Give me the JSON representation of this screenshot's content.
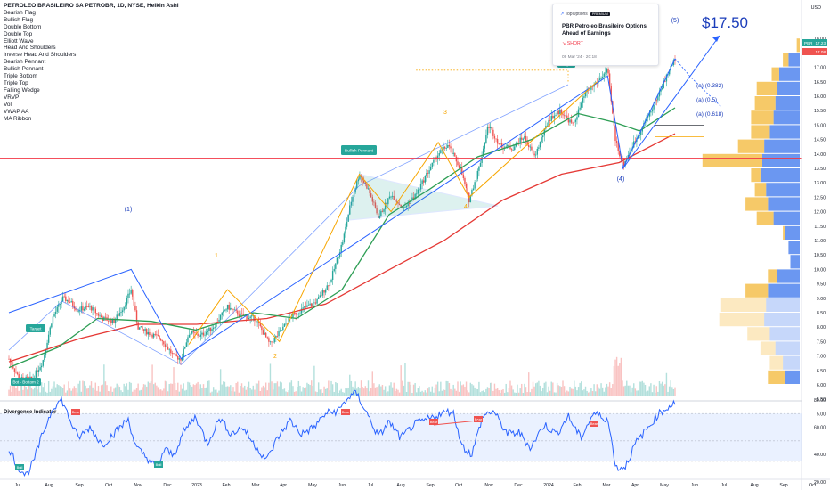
{
  "header": {
    "symbol_line": "PETROLEO BRASILEIRO SA PETROBR, 1D, NYSE, Heikin Ashi",
    "currency": "USD"
  },
  "legend": {
    "items": [
      "Bearish Flag",
      "Bullish Flag",
      "Double Bottom",
      "Double Top",
      "Elliott Wave",
      "Head And Shoulders",
      "Inverse Head And Shoulders",
      "Bearish Pennant",
      "Bullish Pennant",
      "Triple Bottom",
      "Triple Top",
      "Falling Wedge",
      "VRVP",
      "Vol",
      "VWAP AA",
      "MA Ribbon"
    ]
  },
  "news": {
    "source": "TopOptions",
    "badge": "PREMIUM",
    "headline": "PBR Petroleo Brasileiro Options Ahead of Earnings",
    "signal": "SHORT",
    "date": "09 Mar '24 · 20:18"
  },
  "annotations": {
    "target_price": "$17.50",
    "wave_labels": [
      "(1)",
      "(4)",
      "(5)",
      "1",
      "2",
      "3",
      "4"
    ],
    "fib_labels": [
      "(a) (0.382)",
      "(a) (0.5)",
      "(a) (0.618)"
    ],
    "pattern_label": "Bullish Pennant",
    "target_tags": [
      "Target",
      "Target"
    ],
    "pattern_tag": "Bot - Bottom 2",
    "price_tags": {
      "symbol": "PBR",
      "last": "17.23",
      "prev": "17.08"
    }
  },
  "oscillator": {
    "title": "Divergence Indicator",
    "signals": [
      "Bull",
      "Bull",
      "Bear",
      "Bear",
      "Bear",
      "Bear",
      "Bear"
    ],
    "yticks": [
      "80.00",
      "60.00",
      "40.00",
      "20.00"
    ]
  },
  "colors": {
    "bull": "#26a69a",
    "bear": "#ef5350",
    "trend": "#2962ff",
    "pattern": "#f7a600",
    "ma_long": "#e53935",
    "ma_mid": "#2e9e55",
    "hline": "#f23645",
    "vp_up": "#5b8cf0",
    "vp_down": "#f5c04e"
  },
  "chart_data": [
    {
      "type": "candlestick",
      "title": "PETROLEO BRASILEIRO SA PETROBR, 1D, NYSE, Heikin Ashi",
      "x_ticks": [
        "Jul",
        "Aug",
        "Sep",
        "Oct",
        "Nov",
        "Dec",
        "2023",
        "Feb",
        "Mar",
        "Apr",
        "May",
        "Jun",
        "Jul",
        "Aug",
        "Sep",
        "Oct",
        "Nov",
        "Dec",
        "2024",
        "Feb",
        "Mar",
        "Apr",
        "May",
        "Jun",
        "Jul",
        "Aug",
        "Sep",
        "Oct"
      ],
      "y_ticks": [
        "18.00",
        "17.50",
        "17.00",
        "16.50",
        "16.00",
        "15.50",
        "15.00",
        "14.50",
        "14.00",
        "13.50",
        "13.00",
        "12.50",
        "12.00",
        "11.50",
        "11.00",
        "10.50",
        "10.00",
        "9.50",
        "9.00",
        "8.50",
        "8.00",
        "7.50",
        "7.00",
        "6.50",
        "6.00",
        "5.50",
        "5.00"
      ],
      "ylim": [
        4.9,
        18.3
      ],
      "price_path": [
        {
          "date": "2022-06-20",
          "price": 6.9
        },
        {
          "date": "2022-07-01",
          "price": 6.2
        },
        {
          "date": "2022-07-14",
          "price": 6.2
        },
        {
          "date": "2022-07-25",
          "price": 6.8
        },
        {
          "date": "2022-08-04",
          "price": 8.3
        },
        {
          "date": "2022-08-15",
          "price": 9.0
        },
        {
          "date": "2022-08-22",
          "price": 8.9
        },
        {
          "date": "2022-08-30",
          "price": 8.6
        },
        {
          "date": "2022-09-12",
          "price": 8.7
        },
        {
          "date": "2022-09-25",
          "price": 8.3
        },
        {
          "date": "2022-10-07",
          "price": 8.2
        },
        {
          "date": "2022-10-17",
          "price": 8.7
        },
        {
          "date": "2022-10-25",
          "price": 9.3
        },
        {
          "date": "2022-11-01",
          "price": 8.0
        },
        {
          "date": "2022-11-12",
          "price": 7.8
        },
        {
          "date": "2022-11-25",
          "price": 7.6
        },
        {
          "date": "2022-12-08",
          "price": 7.0
        },
        {
          "date": "2022-12-16",
          "price": 6.9
        },
        {
          "date": "2022-12-24",
          "price": 7.8
        },
        {
          "date": "2023-01-05",
          "price": 7.7
        },
        {
          "date": "2023-01-18",
          "price": 8.0
        },
        {
          "date": "2023-02-02",
          "price": 8.7
        },
        {
          "date": "2023-02-16",
          "price": 8.4
        },
        {
          "date": "2023-03-03",
          "price": 8.3
        },
        {
          "date": "2023-03-18",
          "price": 7.4
        },
        {
          "date": "2023-03-28",
          "price": 7.8
        },
        {
          "date": "2023-04-10",
          "price": 8.4
        },
        {
          "date": "2023-04-20",
          "price": 8.6
        },
        {
          "date": "2023-05-06",
          "price": 8.9
        },
        {
          "date": "2023-05-20",
          "price": 9.6
        },
        {
          "date": "2023-06-02",
          "price": 11.0
        },
        {
          "date": "2023-06-10",
          "price": 12.3
        },
        {
          "date": "2023-06-19",
          "price": 13.3
        },
        {
          "date": "2023-06-28",
          "price": 12.8
        },
        {
          "date": "2023-07-09",
          "price": 11.8
        },
        {
          "date": "2023-07-22",
          "price": 12.6
        },
        {
          "date": "2023-08-04",
          "price": 12.1
        },
        {
          "date": "2023-08-17",
          "price": 12.6
        },
        {
          "date": "2023-08-28",
          "price": 13.3
        },
        {
          "date": "2023-09-09",
          "price": 14.0
        },
        {
          "date": "2023-09-19",
          "price": 14.3
        },
        {
          "date": "2023-10-02",
          "price": 13.5
        },
        {
          "date": "2023-10-11",
          "price": 12.4
        },
        {
          "date": "2023-10-22",
          "price": 13.6
        },
        {
          "date": "2023-10-31",
          "price": 15.0
        },
        {
          "date": "2023-11-12",
          "price": 14.3
        },
        {
          "date": "2023-11-25",
          "price": 14.2
        },
        {
          "date": "2023-12-07",
          "price": 14.6
        },
        {
          "date": "2023-12-18",
          "price": 13.9
        },
        {
          "date": "2024-01-02",
          "price": 15.2
        },
        {
          "date": "2024-01-14",
          "price": 15.5
        },
        {
          "date": "2024-01-27",
          "price": 15.0
        },
        {
          "date": "2024-02-09",
          "price": 16.1
        },
        {
          "date": "2024-02-21",
          "price": 16.5
        },
        {
          "date": "2024-03-03",
          "price": 16.9
        },
        {
          "date": "2024-03-11",
          "price": 14.5
        },
        {
          "date": "2024-03-19",
          "price": 13.6
        },
        {
          "date": "2024-03-29",
          "price": 14.3
        },
        {
          "date": "2024-04-09",
          "price": 15.0
        },
        {
          "date": "2024-04-20",
          "price": 15.7
        },
        {
          "date": "2024-05-02",
          "price": 16.6
        },
        {
          "date": "2024-05-12",
          "price": 17.3
        }
      ],
      "ma_long": [
        {
          "date": "2022-06-20",
          "price": 6.8
        },
        {
          "date": "2022-09-01",
          "price": 7.6
        },
        {
          "date": "2022-11-01",
          "price": 8.1
        },
        {
          "date": "2023-01-01",
          "price": 8.1
        },
        {
          "date": "2023-03-15",
          "price": 8.3
        },
        {
          "date": "2023-05-15",
          "price": 8.8
        },
        {
          "date": "2023-07-15",
          "price": 9.9
        },
        {
          "date": "2023-09-15",
          "price": 11.0
        },
        {
          "date": "2023-11-15",
          "price": 12.4
        },
        {
          "date": "2024-01-15",
          "price": 13.3
        },
        {
          "date": "2024-03-15",
          "price": 13.7
        },
        {
          "date": "2024-05-12",
          "price": 14.7
        }
      ],
      "ma_mid": [
        {
          "date": "2022-06-20",
          "price": 6.6
        },
        {
          "date": "2022-08-10",
          "price": 7.3
        },
        {
          "date": "2022-09-20",
          "price": 8.3
        },
        {
          "date": "2022-11-15",
          "price": 8.2
        },
        {
          "date": "2022-12-31",
          "price": 7.9
        },
        {
          "date": "2023-03-01",
          "price": 8.5
        },
        {
          "date": "2023-04-15",
          "price": 8.3
        },
        {
          "date": "2023-06-01",
          "price": 9.3
        },
        {
          "date": "2023-07-20",
          "price": 11.9
        },
        {
          "date": "2023-09-01",
          "price": 12.8
        },
        {
          "date": "2023-10-20",
          "price": 13.9
        },
        {
          "date": "2023-12-15",
          "price": 14.5
        },
        {
          "date": "2024-02-01",
          "price": 15.4
        },
        {
          "date": "2024-03-10",
          "price": 15.1
        },
        {
          "date": "2024-04-05",
          "price": 14.8
        },
        {
          "date": "2024-05-12",
          "price": 15.6
        }
      ],
      "horizontal_level": 13.85,
      "target_price": 17.5,
      "volume_profile": [
        {
          "price": 17.75,
          "up": 0,
          "down": 8
        },
        {
          "price": 17.25,
          "up": 30,
          "down": 15
        },
        {
          "price": 16.75,
          "up": 55,
          "down": 20
        },
        {
          "price": 16.25,
          "up": 60,
          "down": 55
        },
        {
          "price": 15.75,
          "up": 65,
          "down": 55
        },
        {
          "price": 15.25,
          "up": 70,
          "down": 60
        },
        {
          "price": 14.75,
          "up": 80,
          "down": 50
        },
        {
          "price": 14.25,
          "up": 95,
          "down": 70
        },
        {
          "price": 13.75,
          "up": 100,
          "down": 160
        },
        {
          "price": 13.25,
          "up": 105,
          "down": 25
        },
        {
          "price": 12.75,
          "up": 90,
          "down": 30
        },
        {
          "price": 12.25,
          "up": 85,
          "down": 60
        },
        {
          "price": 11.75,
          "up": 70,
          "down": 45
        },
        {
          "price": 11.25,
          "up": 40,
          "down": 5
        },
        {
          "price": 10.75,
          "up": 30,
          "down": 0
        },
        {
          "price": 10.25,
          "up": 25,
          "down": 0
        },
        {
          "price": 9.75,
          "up": 60,
          "down": 25
        },
        {
          "price": 9.25,
          "up": 85,
          "down": 60
        },
        {
          "price": 8.75,
          "up": 90,
          "down": 120
        },
        {
          "price": 8.25,
          "up": 95,
          "down": 120
        },
        {
          "price": 7.75,
          "up": 80,
          "down": 60
        },
        {
          "price": 7.25,
          "up": 65,
          "down": 40
        },
        {
          "price": 6.75,
          "up": 45,
          "down": 35
        },
        {
          "price": 6.25,
          "up": 40,
          "down": 45
        }
      ]
    },
    {
      "type": "line",
      "title": "Divergence Indicator",
      "y_ticks": [
        "80.00",
        "60.00",
        "40.00",
        "20.00"
      ],
      "ylim": [
        18,
        88
      ],
      "band": [
        35,
        70
      ],
      "rsi_path": [
        {
          "date": "2022-06-20",
          "value": 45
        },
        {
          "date": "2022-06-29",
          "value": 31
        },
        {
          "date": "2022-07-08",
          "value": 25
        },
        {
          "date": "2022-07-15",
          "value": 34
        },
        {
          "date": "2022-07-25",
          "value": 55
        },
        {
          "date": "2022-08-05",
          "value": 75
        },
        {
          "date": "2022-08-14",
          "value": 80
        },
        {
          "date": "2022-08-22",
          "value": 66
        },
        {
          "date": "2022-08-31",
          "value": 52
        },
        {
          "date": "2022-09-12",
          "value": 60
        },
        {
          "date": "2022-09-25",
          "value": 47
        },
        {
          "date": "2022-10-08",
          "value": 56
        },
        {
          "date": "2022-10-22",
          "value": 66
        },
        {
          "date": "2022-10-30",
          "value": 45
        },
        {
          "date": "2022-11-10",
          "value": 38
        },
        {
          "date": "2022-11-20",
          "value": 30
        },
        {
          "date": "2022-11-29",
          "value": 44
        },
        {
          "date": "2022-12-08",
          "value": 39
        },
        {
          "date": "2022-12-18",
          "value": 56
        },
        {
          "date": "2022-12-31",
          "value": 68
        },
        {
          "date": "2023-01-12",
          "value": 48
        },
        {
          "date": "2023-01-25",
          "value": 67
        },
        {
          "date": "2023-02-06",
          "value": 55
        },
        {
          "date": "2023-02-18",
          "value": 60
        },
        {
          "date": "2023-03-02",
          "value": 47
        },
        {
          "date": "2023-03-15",
          "value": 36
        },
        {
          "date": "2023-03-26",
          "value": 52
        },
        {
          "date": "2023-04-08",
          "value": 65
        },
        {
          "date": "2023-04-20",
          "value": 55
        },
        {
          "date": "2023-05-03",
          "value": 60
        },
        {
          "date": "2023-05-15",
          "value": 70
        },
        {
          "date": "2023-05-28",
          "value": 72
        },
        {
          "date": "2023-06-08",
          "value": 82
        },
        {
          "date": "2023-06-16",
          "value": 85
        },
        {
          "date": "2023-06-27",
          "value": 70
        },
        {
          "date": "2023-07-09",
          "value": 53
        },
        {
          "date": "2023-07-20",
          "value": 64
        },
        {
          "date": "2023-08-01",
          "value": 52
        },
        {
          "date": "2023-08-15",
          "value": 62
        },
        {
          "date": "2023-08-30",
          "value": 66
        },
        {
          "date": "2023-09-12",
          "value": 70
        },
        {
          "date": "2023-09-24",
          "value": 72
        },
        {
          "date": "2023-10-04",
          "value": 46
        },
        {
          "date": "2023-10-14",
          "value": 40
        },
        {
          "date": "2023-10-25",
          "value": 68
        },
        {
          "date": "2023-11-05",
          "value": 72
        },
        {
          "date": "2023-11-20",
          "value": 55
        },
        {
          "date": "2023-12-02",
          "value": 56
        },
        {
          "date": "2023-12-14",
          "value": 45
        },
        {
          "date": "2023-12-28",
          "value": 62
        },
        {
          "date": "2024-01-10",
          "value": 55
        },
        {
          "date": "2024-01-22",
          "value": 68
        },
        {
          "date": "2024-02-04",
          "value": 52
        },
        {
          "date": "2024-02-17",
          "value": 70
        },
        {
          "date": "2024-03-03",
          "value": 66
        },
        {
          "date": "2024-03-12",
          "value": 30
        },
        {
          "date": "2024-03-21",
          "value": 31
        },
        {
          "date": "2024-04-01",
          "value": 48
        },
        {
          "date": "2024-04-12",
          "value": 58
        },
        {
          "date": "2024-04-25",
          "value": 70
        },
        {
          "date": "2024-05-12",
          "value": 78
        }
      ]
    }
  ]
}
